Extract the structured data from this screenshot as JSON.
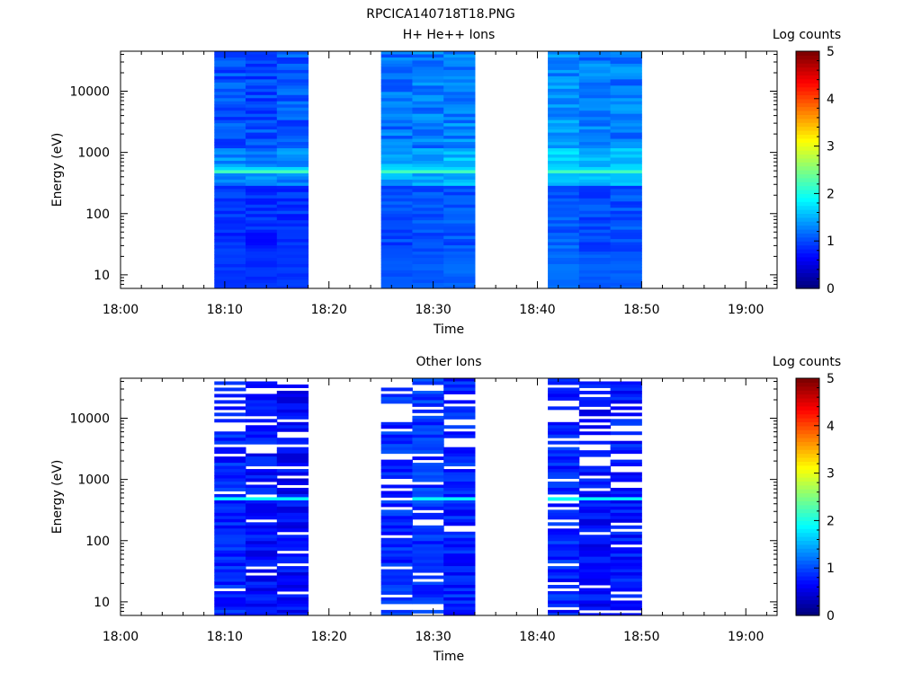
{
  "figure_title": "RPCICA140718T18.PNG",
  "colorbar": {
    "label": "Log counts",
    "ticks": [
      "0",
      "1",
      "2",
      "3",
      "4",
      "5"
    ],
    "min": 0,
    "max": 5,
    "colormap": "jet"
  },
  "chart_data": [
    {
      "type": "heatmap",
      "title": "H+ He++ Ions",
      "xlabel": "Time",
      "ylabel": "Energy (eV)",
      "x_ticks": [
        "18:00",
        "18:10",
        "18:20",
        "18:30",
        "18:40",
        "18:50",
        "19:00"
      ],
      "y_ticks": [
        "10",
        "100",
        "1000",
        "10000"
      ],
      "y_scale": "log",
      "xlim": [
        "18:00",
        "19:03"
      ],
      "ylim": [
        6,
        45000
      ],
      "colorbar_label": "Log counts",
      "colorbar_range": [
        0,
        5
      ],
      "columns": [
        {
          "start": "18:09",
          "end": "18:12",
          "kind": "H",
          "seed": 11,
          "bias": 0.9
        },
        {
          "start": "18:12",
          "end": "18:15",
          "kind": "H",
          "seed": 12,
          "bias": 0.85
        },
        {
          "start": "18:15",
          "end": "18:18",
          "kind": "H",
          "seed": 13,
          "bias": 0.9
        },
        {
          "start": "18:25",
          "end": "18:28",
          "kind": "H",
          "seed": 14,
          "bias": 1.05
        },
        {
          "start": "18:28",
          "end": "18:31",
          "kind": "H",
          "seed": 15,
          "bias": 1.1
        },
        {
          "start": "18:31",
          "end": "18:34",
          "kind": "H",
          "seed": 16,
          "bias": 1.15
        },
        {
          "start": "18:41",
          "end": "18:44",
          "kind": "H",
          "seed": 17,
          "bias": 1.2
        },
        {
          "start": "18:44",
          "end": "18:47",
          "kind": "H",
          "seed": 18,
          "bias": 1.1
        },
        {
          "start": "18:47",
          "end": "18:50",
          "kind": "H",
          "seed": 19,
          "bias": 1.1
        }
      ]
    },
    {
      "type": "heatmap",
      "title": "Other Ions",
      "xlabel": "Time",
      "ylabel": "Energy (eV)",
      "x_ticks": [
        "18:00",
        "18:10",
        "18:20",
        "18:30",
        "18:40",
        "18:50",
        "19:00"
      ],
      "y_ticks": [
        "10",
        "100",
        "1000",
        "10000"
      ],
      "y_scale": "log",
      "xlim": [
        "18:00",
        "19:03"
      ],
      "ylim": [
        6,
        45000
      ],
      "colorbar_label": "Log counts",
      "colorbar_range": [
        0,
        5
      ],
      "columns": [
        {
          "start": "18:09",
          "end": "18:12",
          "kind": "O",
          "seed": 21,
          "bias": 0.55
        },
        {
          "start": "18:12",
          "end": "18:15",
          "kind": "O",
          "seed": 22,
          "bias": 0.45
        },
        {
          "start": "18:15",
          "end": "18:18",
          "kind": "O",
          "seed": 23,
          "bias": 0.4
        },
        {
          "start": "18:25",
          "end": "18:28",
          "kind": "O",
          "seed": 24,
          "bias": 0.6
        },
        {
          "start": "18:28",
          "end": "18:31",
          "kind": "O",
          "seed": 25,
          "bias": 0.65
        },
        {
          "start": "18:31",
          "end": "18:34",
          "kind": "O",
          "seed": 26,
          "bias": 0.55
        },
        {
          "start": "18:41",
          "end": "18:44",
          "kind": "O",
          "seed": 27,
          "bias": 0.55
        },
        {
          "start": "18:44",
          "end": "18:47",
          "kind": "O",
          "seed": 28,
          "bias": 0.45
        },
        {
          "start": "18:47",
          "end": "18:50",
          "kind": "O",
          "seed": 29,
          "bias": 0.5
        }
      ]
    }
  ]
}
